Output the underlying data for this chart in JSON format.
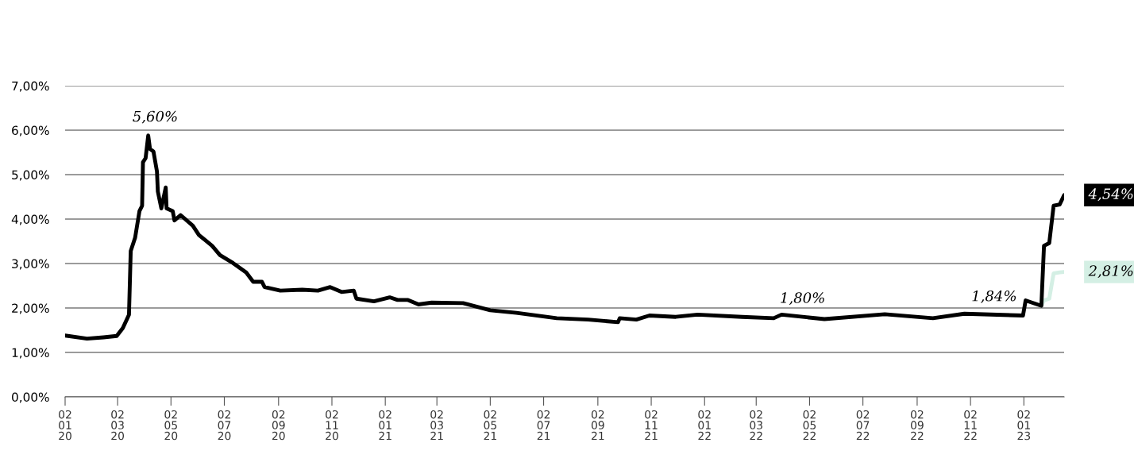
{
  "chart_data": {
    "type": "line",
    "x": [
      "2020-01-02",
      "2020-01-27",
      "2020-02-15",
      "2020-03-01",
      "2020-03-08",
      "2020-03-15",
      "2020-03-17",
      "2020-03-22",
      "2020-03-27",
      "2020-03-30",
      "2020-03-31",
      "2020-04-03",
      "2020-04-06",
      "2020-04-08",
      "2020-04-12",
      "2020-04-16",
      "2020-04-17",
      "2020-04-21",
      "2020-04-26",
      "2020-04-27",
      "2020-05-04",
      "2020-05-06",
      "2020-05-13",
      "2020-05-27",
      "2020-06-03",
      "2020-06-18",
      "2020-06-27",
      "2020-07-12",
      "2020-07-27",
      "2020-08-04",
      "2020-08-14",
      "2020-08-17",
      "2020-09-04",
      "2020-09-29",
      "2020-10-17",
      "2020-10-31",
      "2020-11-13",
      "2020-11-27",
      "2020-11-30",
      "2020-12-20",
      "2021-01-07",
      "2021-01-16",
      "2021-01-28",
      "2021-02-09",
      "2021-02-24",
      "2021-04-01",
      "2021-05-02",
      "2021-06-01",
      "2021-07-17",
      "2021-08-22",
      "2021-09-25",
      "2021-09-27",
      "2021-10-16",
      "2021-10-31",
      "2021-11-30",
      "2021-12-25",
      "2022-02-14",
      "2022-03-22",
      "2022-03-31",
      "2022-05-19",
      "2022-07-27",
      "2022-09-20",
      "2022-10-26",
      "2023-01-01",
      "2023-01-04",
      "2023-01-22",
      "2023-01-25",
      "2023-01-31",
      "2023-02-05",
      "2023-02-12",
      "2023-02-17"
    ],
    "series": [
      {
        "color": "#d4efe4",
        "x": [
          "2023-01-22",
          "2023-01-25",
          "2023-01-31",
          "2023-02-05",
          "2023-02-12",
          "2023-02-17"
        ],
        "values": [
          2.05,
          2.17,
          2.21,
          2.78,
          2.8,
          2.81
        ]
      },
      {
        "color": "#000000",
        "values": [
          1.38,
          1.31,
          1.34,
          1.37,
          1.55,
          1.85,
          3.28,
          3.58,
          4.18,
          4.3,
          5.28,
          5.37,
          5.88,
          5.58,
          5.52,
          5.07,
          4.62,
          4.24,
          4.71,
          4.24,
          4.18,
          3.97,
          4.09,
          3.85,
          3.64,
          3.4,
          3.19,
          3.01,
          2.8,
          2.59,
          2.59,
          2.47,
          2.39,
          2.41,
          2.39,
          2.47,
          2.36,
          2.39,
          2.21,
          2.15,
          2.24,
          2.18,
          2.18,
          2.08,
          2.12,
          2.11,
          1.95,
          1.89,
          1.77,
          1.74,
          1.68,
          1.77,
          1.74,
          1.83,
          1.8,
          1.85,
          1.8,
          1.77,
          1.85,
          1.75,
          1.86,
          1.77,
          1.87,
          1.83,
          2.17,
          2.05,
          3.4,
          3.46,
          4.3,
          4.33,
          4.54
        ]
      }
    ],
    "xlim": [
      "2020-01-02",
      "2023-02-17"
    ],
    "xticks": [
      {
        "value": "2020-01-02",
        "label": "02\n01\n20"
      },
      {
        "value": "2020-03-02",
        "label": "02\n03\n20"
      },
      {
        "value": "2020-05-02",
        "label": "02\n05\n20"
      },
      {
        "value": "2020-07-02",
        "label": "02\n07\n20"
      },
      {
        "value": "2020-09-02",
        "label": "02\n09\n20"
      },
      {
        "value": "2020-11-02",
        "label": "02\n11\n20"
      },
      {
        "value": "2021-01-02",
        "label": "02\n01\n21"
      },
      {
        "value": "2021-03-02",
        "label": "02\n03\n21"
      },
      {
        "value": "2021-05-02",
        "label": "02\n05\n21"
      },
      {
        "value": "2021-07-02",
        "label": "02\n07\n21"
      },
      {
        "value": "2021-09-02",
        "label": "02\n09\n21"
      },
      {
        "value": "2021-11-02",
        "label": "02\n11\n21"
      },
      {
        "value": "2022-01-02",
        "label": "02\n01\n22"
      },
      {
        "value": "2022-03-02",
        "label": "02\n03\n22"
      },
      {
        "value": "2022-05-02",
        "label": "02\n05\n22"
      },
      {
        "value": "2022-07-02",
        "label": "02\n07\n22"
      },
      {
        "value": "2022-09-02",
        "label": "02\n09\n22"
      },
      {
        "value": "2022-11-02",
        "label": "02\n11\n22"
      },
      {
        "value": "2023-01-02",
        "label": "02\n01\n23"
      }
    ],
    "ylim": [
      0,
      7
    ],
    "yticks": [
      {
        "value": 0,
        "label": "0,00%"
      },
      {
        "value": 1,
        "label": "1,00%"
      },
      {
        "value": 2,
        "label": "2,00%"
      },
      {
        "value": 3,
        "label": "3,00%"
      },
      {
        "value": 4,
        "label": "4,00%"
      },
      {
        "value": 5,
        "label": "5,00%"
      },
      {
        "value": 6,
        "label": "6,00%"
      },
      {
        "value": 7,
        "label": "7,00%"
      }
    ],
    "grid": "y",
    "legend": false,
    "annotations": [
      {
        "text": "5,60%",
        "x": "2020-04-14",
        "y": 5.6
      },
      {
        "text": "1,80%",
        "x": "2022-04-24",
        "y": 1.8
      },
      {
        "text": "1,84%",
        "x": "2022-11-29",
        "y": 1.84
      }
    ],
    "value_labels": [
      "2,81%",
      "4,54%"
    ]
  }
}
